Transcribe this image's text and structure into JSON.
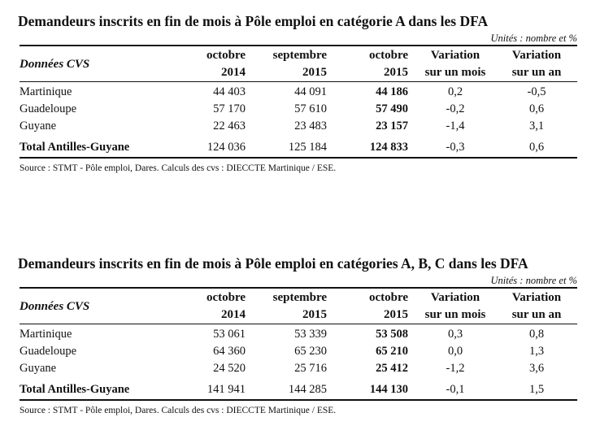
{
  "tables": [
    {
      "title": "Demandeurs inscrits en fin de mois à Pôle emploi en catégorie A dans les DFA",
      "units": "Unités : nombre et %",
      "header": {
        "label": "Données CVS",
        "columns": [
          {
            "line1": "octobre",
            "line2": "2014"
          },
          {
            "line1": "septembre",
            "line2": "2015"
          },
          {
            "line1": "octobre",
            "line2": "2015"
          },
          {
            "line1": "Variation",
            "line2": "sur un mois"
          },
          {
            "line1": "Variation",
            "line2": "sur un an"
          }
        ]
      },
      "rows": [
        {
          "label": "Martinique",
          "oct2014": "44 403",
          "sep2015": "44 091",
          "oct2015": "44 186",
          "var_month": "0,2",
          "var_year": "-0,5"
        },
        {
          "label": "Guadeloupe",
          "oct2014": "57 170",
          "sep2015": "57 610",
          "oct2015": "57 490",
          "var_month": "-0,2",
          "var_year": "0,6"
        },
        {
          "label": "Guyane",
          "oct2014": "22 463",
          "sep2015": "23 483",
          "oct2015": "23 157",
          "var_month": "-1,4",
          "var_year": "3,1"
        }
      ],
      "total": {
        "label": "Total Antilles-Guyane",
        "oct2014": "124 036",
        "sep2015": "125 184",
        "oct2015": "124 833",
        "var_month": "-0,3",
        "var_year": "0,6"
      },
      "source": "Source : STMT - Pôle emploi, Dares. Calculs des cvs : DIECCTE Martinique / ESE."
    },
    {
      "title": "Demandeurs inscrits en fin de mois à Pôle emploi en catégories A, B, C dans les DFA",
      "units": "Unités : nombre et %",
      "header": {
        "label": "Données CVS",
        "columns": [
          {
            "line1": "octobre",
            "line2": "2014"
          },
          {
            "line1": "septembre",
            "line2": "2015"
          },
          {
            "line1": "octobre",
            "line2": "2015"
          },
          {
            "line1": "Variation",
            "line2": "sur un mois"
          },
          {
            "line1": "Variation",
            "line2": "sur un an"
          }
        ]
      },
      "rows": [
        {
          "label": "Martinique",
          "oct2014": "53 061",
          "sep2015": "53 339",
          "oct2015": "53 508",
          "var_month": "0,3",
          "var_year": "0,8"
        },
        {
          "label": "Guadeloupe",
          "oct2014": "64 360",
          "sep2015": "65 230",
          "oct2015": "65 210",
          "var_month": "0,0",
          "var_year": "1,3"
        },
        {
          "label": "Guyane",
          "oct2014": "24 520",
          "sep2015": "25 716",
          "oct2015": "25 412",
          "var_month": "-1,2",
          "var_year": "3,6"
        }
      ],
      "total": {
        "label": "Total Antilles-Guyane",
        "oct2014": "141 941",
        "sep2015": "144 285",
        "oct2015": "144 130",
        "var_month": "-0,1",
        "var_year": "1,5"
      },
      "source": "Source : STMT - Pôle emploi, Dares. Calculs des cvs : DIECCTE Martinique / ESE."
    }
  ]
}
